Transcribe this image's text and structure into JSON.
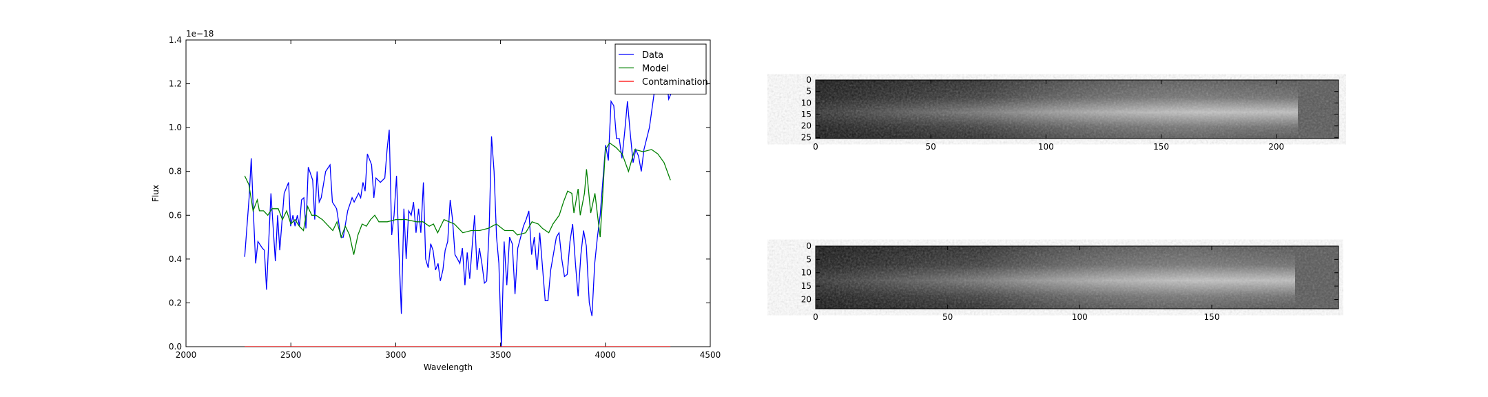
{
  "chart_data": [
    {
      "type": "line",
      "xlabel": "Wavelength",
      "ylabel": "Flux",
      "offset_text": "1e−18",
      "xlim": [
        2000,
        4500
      ],
      "xticks": [
        2000,
        2500,
        3000,
        3500,
        4000,
        4500
      ],
      "ylim": [
        0,
        1.4
      ],
      "yticks": [
        {
          "value": 0,
          "label": "0.0"
        },
        0.2,
        0.4,
        0.6,
        0.8,
        {
          "value": 1,
          "label": "1.0"
        },
        1.2,
        1.4
      ],
      "legend": "upper right",
      "series": [
        {
          "name": "Data",
          "color": "#0000ff",
          "x": [
            2280,
            2301,
            2311,
            2322,
            2332,
            2343,
            2364,
            2374,
            2384,
            2405,
            2426,
            2437,
            2447,
            2468,
            2489,
            2499,
            2510,
            2520,
            2531,
            2541,
            2551,
            2562,
            2572,
            2583,
            2604,
            2614,
            2625,
            2635,
            2645,
            2666,
            2687,
            2698,
            2718,
            2739,
            2750,
            2771,
            2792,
            2802,
            2823,
            2833,
            2844,
            2854,
            2865,
            2885,
            2896,
            2906,
            2927,
            2948,
            2959,
            2969,
            2981,
            2992,
            3004,
            3016,
            3027,
            3039,
            3050,
            3062,
            3074,
            3085,
            3097,
            3109,
            3120,
            3132,
            3143,
            3155,
            3167,
            3178,
            3190,
            3202,
            3213,
            3225,
            3236,
            3248,
            3260,
            3271,
            3283,
            3295,
            3306,
            3318,
            3330,
            3341,
            3353,
            3364,
            3376,
            3388,
            3399,
            3411,
            3423,
            3434,
            3446,
            3457,
            3469,
            3481,
            3492,
            3504,
            3517,
            3530,
            3543,
            3556,
            3569,
            3582,
            3596,
            3609,
            3622,
            3635,
            3648,
            3661,
            3674,
            3687,
            3713,
            3726,
            3739,
            3766,
            3779,
            3792,
            3805,
            3818,
            3831,
            3844,
            3857,
            3870,
            3883,
            3896,
            3909,
            3923,
            3936,
            3949,
            3962,
            3975,
            4001,
            4014,
            4027,
            4040,
            4053,
            4066,
            4079,
            4092,
            4105,
            4118,
            4132,
            4145,
            4158,
            4171,
            4184,
            4210,
            4236,
            4262,
            4289,
            4302,
            4315
          ],
          "values": [
            0.41,
            0.68,
            0.86,
            0.6,
            0.38,
            0.48,
            0.45,
            0.44,
            0.26,
            0.7,
            0.39,
            0.6,
            0.44,
            0.7,
            0.75,
            0.55,
            0.6,
            0.55,
            0.6,
            0.55,
            0.67,
            0.68,
            0.54,
            0.82,
            0.76,
            0.58,
            0.8,
            0.66,
            0.68,
            0.8,
            0.83,
            0.66,
            0.63,
            0.5,
            0.5,
            0.62,
            0.68,
            0.66,
            0.7,
            0.68,
            0.75,
            0.71,
            0.88,
            0.83,
            0.68,
            0.77,
            0.75,
            0.77,
            0.9,
            0.99,
            0.51,
            0.6,
            0.78,
            0.42,
            0.15,
            0.63,
            0.4,
            0.62,
            0.6,
            0.66,
            0.52,
            0.63,
            0.52,
            0.75,
            0.4,
            0.36,
            0.47,
            0.44,
            0.35,
            0.38,
            0.3,
            0.35,
            0.44,
            0.48,
            0.67,
            0.58,
            0.42,
            0.4,
            0.38,
            0.45,
            0.28,
            0.43,
            0.31,
            0.45,
            0.6,
            0.35,
            0.45,
            0.38,
            0.29,
            0.3,
            0.55,
            0.96,
            0.8,
            0.5,
            0.38,
            0.0,
            0.48,
            0.28,
            0.5,
            0.47,
            0.24,
            0.45,
            0.5,
            0.55,
            0.58,
            0.62,
            0.42,
            0.5,
            0.35,
            0.52,
            0.21,
            0.21,
            0.35,
            0.5,
            0.52,
            0.4,
            0.32,
            0.33,
            0.48,
            0.56,
            0.38,
            0.23,
            0.42,
            0.53,
            0.46,
            0.2,
            0.14,
            0.38,
            0.5,
            0.6,
            0.92,
            0.85,
            1.12,
            1.1,
            0.95,
            0.95,
            0.86,
            0.98,
            1.12,
            0.98,
            0.84,
            0.9,
            0.87,
            0.8,
            0.9,
            1.0,
            1.18,
            1.22,
            1.24,
            1.13,
            1.16
          ]
        },
        {
          "name": "Model",
          "color": "#008000",
          "x": [
            2280,
            2300,
            2320,
            2340,
            2350,
            2370,
            2390,
            2410,
            2440,
            2460,
            2480,
            2500,
            2520,
            2540,
            2560,
            2580,
            2600,
            2620,
            2650,
            2680,
            2700,
            2720,
            2740,
            2760,
            2780,
            2800,
            2820,
            2840,
            2860,
            2880,
            2900,
            2920,
            2960,
            3000,
            3050,
            3100,
            3130,
            3160,
            3180,
            3200,
            3230,
            3280,
            3320,
            3360,
            3400,
            3440,
            3480,
            3520,
            3560,
            3580,
            3620,
            3650,
            3680,
            3700,
            3730,
            3750,
            3780,
            3800,
            3820,
            3840,
            3850,
            3870,
            3880,
            3900,
            3910,
            3930,
            3950,
            3975,
            4000,
            4020,
            4050,
            4080,
            4110,
            4140,
            4180,
            4220,
            4250,
            4280,
            4310
          ],
          "values": [
            0.78,
            0.74,
            0.62,
            0.67,
            0.62,
            0.62,
            0.6,
            0.63,
            0.63,
            0.58,
            0.62,
            0.56,
            0.58,
            0.55,
            0.53,
            0.64,
            0.6,
            0.6,
            0.58,
            0.55,
            0.53,
            0.57,
            0.5,
            0.55,
            0.51,
            0.42,
            0.51,
            0.56,
            0.55,
            0.58,
            0.6,
            0.57,
            0.57,
            0.58,
            0.58,
            0.57,
            0.57,
            0.55,
            0.56,
            0.52,
            0.58,
            0.56,
            0.52,
            0.53,
            0.53,
            0.54,
            0.56,
            0.53,
            0.53,
            0.51,
            0.52,
            0.57,
            0.56,
            0.54,
            0.52,
            0.56,
            0.6,
            0.66,
            0.71,
            0.7,
            0.61,
            0.72,
            0.6,
            0.7,
            0.81,
            0.61,
            0.7,
            0.5,
            0.9,
            0.93,
            0.91,
            0.88,
            0.8,
            0.9,
            0.89,
            0.9,
            0.88,
            0.84,
            0.76
          ]
        },
        {
          "name": "Contamination",
          "color": "#ff0000",
          "x": [
            2280,
            4310
          ],
          "values": [
            0,
            0
          ]
        }
      ]
    },
    {
      "type": "image",
      "xlim": [
        0,
        227
      ],
      "xticks": [
        0,
        50,
        100,
        150,
        200
      ],
      "ylim": [
        0,
        25.5
      ],
      "yticks": [
        0,
        5,
        10,
        15,
        20,
        25
      ],
      "y_inverted": true
    },
    {
      "type": "image",
      "xlim": [
        0,
        198
      ],
      "xticks": [
        0,
        50,
        100,
        150
      ],
      "ylim": [
        0,
        23.5
      ],
      "yticks": [
        0,
        5,
        10,
        15,
        20
      ],
      "y_inverted": true
    }
  ]
}
